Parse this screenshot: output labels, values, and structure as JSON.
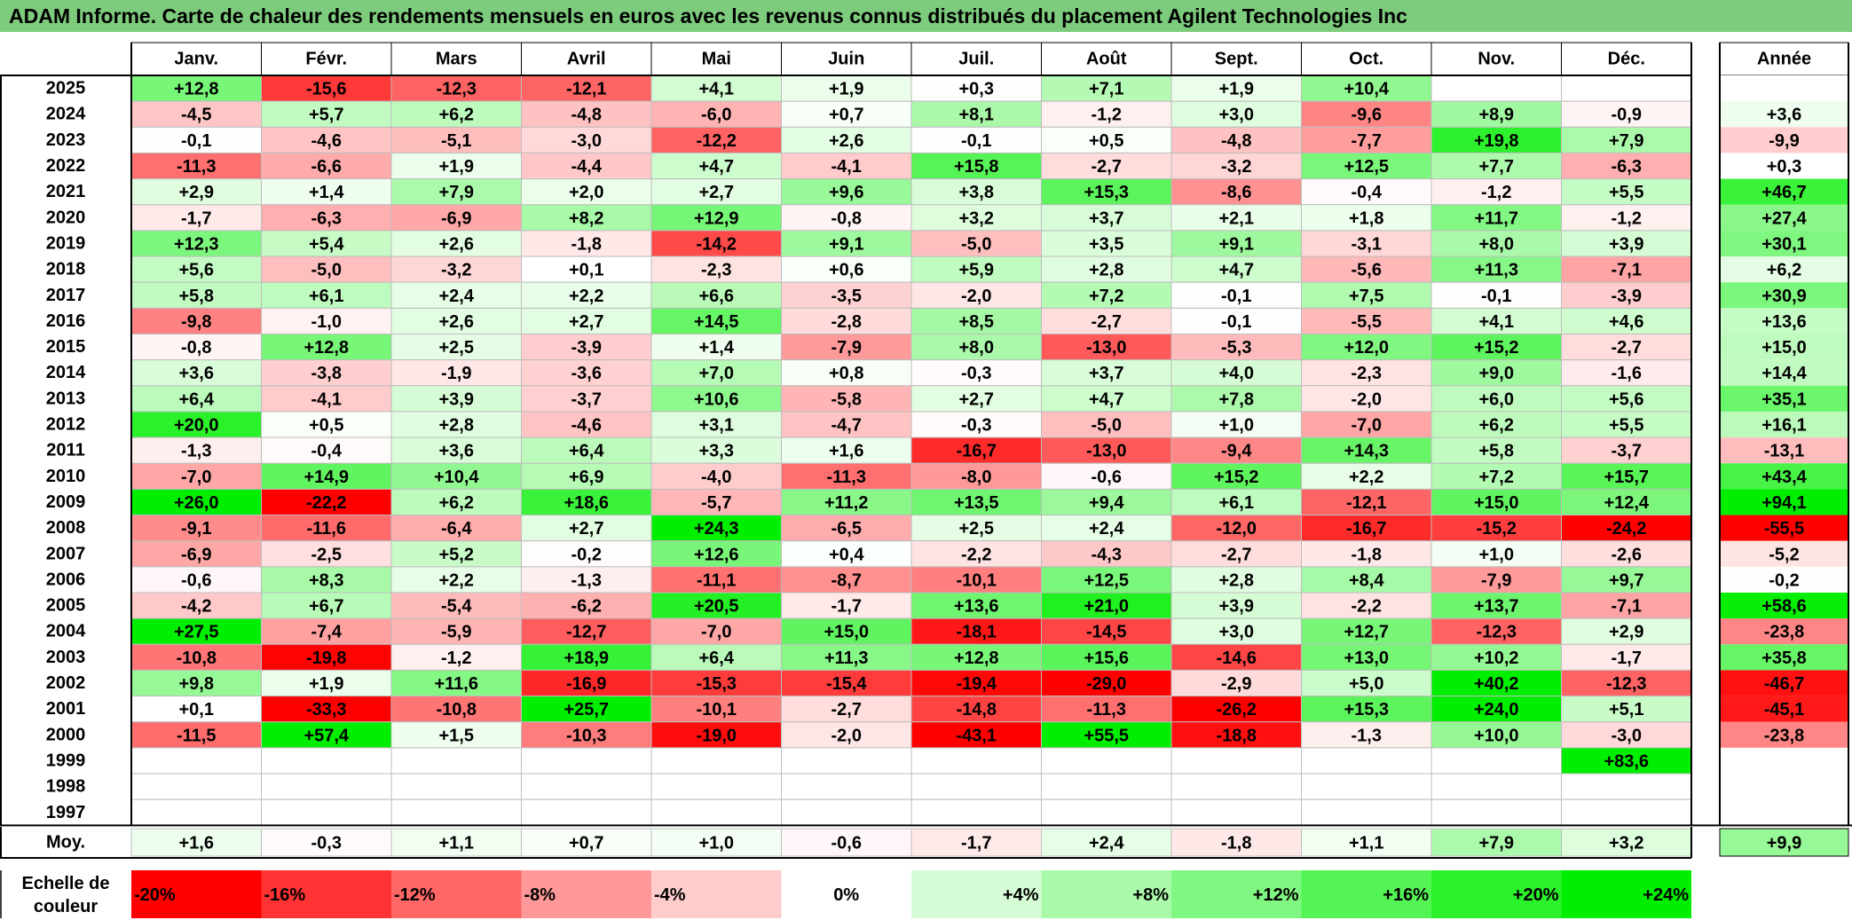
{
  "title": "ADAM Informe. Carte de chaleur des rendements mensuels en euros avec les revenus connus distribués du placement Agilent Technologies Inc",
  "chart_data": {
    "type": "heatmap",
    "title": "ADAM Informe. Carte de chaleur des rendements mensuels en euros avec les revenus connus distribués du placement Agilent Technologies Inc",
    "columns": [
      "Janv.",
      "Févr.",
      "Mars",
      "Avril",
      "Mai",
      "Juin",
      "Juil.",
      "Août",
      "Sept.",
      "Oct.",
      "Nov.",
      "Déc."
    ],
    "year_column_label": "Année",
    "rows": [
      {
        "year": "2025",
        "values": [
          "+12,8",
          "-15,6",
          "-12,3",
          "-12,1",
          "+4,1",
          "+1,9",
          "+0,3",
          "+7,1",
          "+1,9",
          "+10,4",
          "",
          ""
        ],
        "annual": ""
      },
      {
        "year": "2024",
        "values": [
          "-4,5",
          "+5,7",
          "+6,2",
          "-4,8",
          "-6,0",
          "+0,7",
          "+8,1",
          "-1,2",
          "+3,0",
          "-9,6",
          "+8,9",
          "-0,9"
        ],
        "annual": "+3,6"
      },
      {
        "year": "2023",
        "values": [
          "-0,1",
          "-4,6",
          "-5,1",
          "-3,0",
          "-12,2",
          "+2,6",
          "-0,1",
          "+0,5",
          "-4,8",
          "-7,7",
          "+19,8",
          "+7,9"
        ],
        "annual": "-9,9"
      },
      {
        "year": "2022",
        "values": [
          "-11,3",
          "-6,6",
          "+1,9",
          "-4,4",
          "+4,7",
          "-4,1",
          "+15,8",
          "-2,7",
          "-3,2",
          "+12,5",
          "+7,7",
          "-6,3"
        ],
        "annual": "+0,3"
      },
      {
        "year": "2021",
        "values": [
          "+2,9",
          "+1,4",
          "+7,9",
          "+2,0",
          "+2,7",
          "+9,6",
          "+3,8",
          "+15,3",
          "-8,6",
          "-0,4",
          "-1,2",
          "+5,5"
        ],
        "annual": "+46,7"
      },
      {
        "year": "2020",
        "values": [
          "-1,7",
          "-6,3",
          "-6,9",
          "+8,2",
          "+12,9",
          "-0,8",
          "+3,2",
          "+3,7",
          "+2,1",
          "+1,8",
          "+11,7",
          "-1,2"
        ],
        "annual": "+27,4"
      },
      {
        "year": "2019",
        "values": [
          "+12,3",
          "+5,4",
          "+2,6",
          "-1,8",
          "-14,2",
          "+9,1",
          "-5,0",
          "+3,5",
          "+9,1",
          "-3,1",
          "+8,0",
          "+3,9"
        ],
        "annual": "+30,1"
      },
      {
        "year": "2018",
        "values": [
          "+5,6",
          "-5,0",
          "-3,2",
          "+0,1",
          "-2,3",
          "+0,6",
          "+5,9",
          "+2,8",
          "+4,7",
          "-5,6",
          "+11,3",
          "-7,1"
        ],
        "annual": "+6,2"
      },
      {
        "year": "2017",
        "values": [
          "+5,8",
          "+6,1",
          "+2,4",
          "+2,2",
          "+6,6",
          "-3,5",
          "-2,0",
          "+7,2",
          "-0,1",
          "+7,5",
          "-0,1",
          "-3,9"
        ],
        "annual": "+30,9"
      },
      {
        "year": "2016",
        "values": [
          "-9,8",
          "-1,0",
          "+2,6",
          "+2,7",
          "+14,5",
          "-2,8",
          "+8,5",
          "-2,7",
          "-0,1",
          "-5,5",
          "+4,1",
          "+4,6"
        ],
        "annual": "+13,6"
      },
      {
        "year": "2015",
        "values": [
          "-0,8",
          "+12,8",
          "+2,5",
          "-3,9",
          "+1,4",
          "-7,9",
          "+8,0",
          "-13,0",
          "-5,3",
          "+12,0",
          "+15,2",
          "-2,7"
        ],
        "annual": "+15,0"
      },
      {
        "year": "2014",
        "values": [
          "+3,6",
          "-3,8",
          "-1,9",
          "-3,6",
          "+7,0",
          "+0,8",
          "-0,3",
          "+3,7",
          "+4,0",
          "-2,3",
          "+9,0",
          "-1,6"
        ],
        "annual": "+14,4"
      },
      {
        "year": "2013",
        "values": [
          "+6,4",
          "-4,1",
          "+3,9",
          "-3,7",
          "+10,6",
          "-5,8",
          "+2,7",
          "+4,7",
          "+7,8",
          "-2,0",
          "+6,0",
          "+5,6"
        ],
        "annual": "+35,1"
      },
      {
        "year": "2012",
        "values": [
          "+20,0",
          "+0,5",
          "+2,8",
          "-4,6",
          "+3,1",
          "-4,7",
          "-0,3",
          "-5,0",
          "+1,0",
          "-7,0",
          "+6,2",
          "+5,5"
        ],
        "annual": "+16,1"
      },
      {
        "year": "2011",
        "values": [
          "-1,3",
          "-0,4",
          "+3,6",
          "+6,4",
          "+3,3",
          "+1,6",
          "-16,7",
          "-13,0",
          "-9,4",
          "+14,3",
          "+5,8",
          "-3,7"
        ],
        "annual": "-13,1"
      },
      {
        "year": "2010",
        "values": [
          "-7,0",
          "+14,9",
          "+10,4",
          "+6,9",
          "-4,0",
          "-11,3",
          "-8,0",
          "-0,6",
          "+15,2",
          "+2,2",
          "+7,2",
          "+15,7"
        ],
        "annual": "+43,4"
      },
      {
        "year": "2009",
        "values": [
          "+26,0",
          "-22,2",
          "+6,2",
          "+18,6",
          "-5,7",
          "+11,2",
          "+13,5",
          "+9,4",
          "+6,1",
          "-12,1",
          "+15,0",
          "+12,4"
        ],
        "annual": "+94,1"
      },
      {
        "year": "2008",
        "values": [
          "-9,1",
          "-11,6",
          "-6,4",
          "+2,7",
          "+24,3",
          "-6,5",
          "+2,5",
          "+2,4",
          "-12,0",
          "-16,7",
          "-15,2",
          "-24,2"
        ],
        "annual": "-55,5"
      },
      {
        "year": "2007",
        "values": [
          "-6,9",
          "-2,5",
          "+5,2",
          "-0,2",
          "+12,6",
          "+0,4",
          "-2,2",
          "-4,3",
          "-2,7",
          "-1,8",
          "+1,0",
          "-2,6"
        ],
        "annual": "-5,2"
      },
      {
        "year": "2006",
        "values": [
          "-0,6",
          "+8,3",
          "+2,2",
          "-1,3",
          "-11,1",
          "-8,7",
          "-10,1",
          "+12,5",
          "+2,8",
          "+8,4",
          "-7,9",
          "+9,7"
        ],
        "annual": "-0,2"
      },
      {
        "year": "2005",
        "values": [
          "-4,2",
          "+6,7",
          "-5,4",
          "-6,2",
          "+20,5",
          "-1,7",
          "+13,6",
          "+21,0",
          "+3,9",
          "-2,2",
          "+13,7",
          "-7,1"
        ],
        "annual": "+58,6"
      },
      {
        "year": "2004",
        "values": [
          "+27,5",
          "-7,4",
          "-5,9",
          "-12,7",
          "-7,0",
          "+15,0",
          "-18,1",
          "-14,5",
          "+3,0",
          "+12,7",
          "-12,3",
          "+2,9"
        ],
        "annual": "-23,8"
      },
      {
        "year": "2003",
        "values": [
          "-10,8",
          "-19,8",
          "-1,2",
          "+18,9",
          "+6,4",
          "+11,3",
          "+12,8",
          "+15,6",
          "-14,6",
          "+13,0",
          "+10,2",
          "-1,7"
        ],
        "annual": "+35,8"
      },
      {
        "year": "2002",
        "values": [
          "+9,8",
          "+1,9",
          "+11,6",
          "-16,9",
          "-15,3",
          "-15,4",
          "-19,4",
          "-29,0",
          "-2,9",
          "+5,0",
          "+40,2",
          "-12,3"
        ],
        "annual": "-46,7"
      },
      {
        "year": "2001",
        "values": [
          "+0,1",
          "-33,3",
          "-10,8",
          "+25,7",
          "-10,1",
          "-2,7",
          "-14,8",
          "-11,3",
          "-26,2",
          "+15,3",
          "+24,0",
          "+5,1"
        ],
        "annual": "-45,1"
      },
      {
        "year": "2000",
        "values": [
          "-11,5",
          "+57,4",
          "+1,5",
          "-10,3",
          "-19,0",
          "-2,0",
          "-43,1",
          "+55,5",
          "-18,8",
          "-1,3",
          "+10,0",
          "-3,0"
        ],
        "annual": "-23,8"
      },
      {
        "year": "1999",
        "values": [
          "",
          "",
          "",
          "",
          "",
          "",
          "",
          "",
          "",
          "",
          "",
          "+83,6"
        ],
        "annual": ""
      },
      {
        "year": "1998",
        "values": [
          "",
          "",
          "",
          "",
          "",
          "",
          "",
          "",
          "",
          "",
          "",
          ""
        ],
        "annual": ""
      },
      {
        "year": "1997",
        "values": [
          "",
          "",
          "",
          "",
          "",
          "",
          "",
          "",
          "",
          "",
          "",
          ""
        ],
        "annual": ""
      }
    ],
    "average": {
      "label": "Moy.",
      "values": [
        "+1,6",
        "-0,3",
        "+1,1",
        "+0,7",
        "+1,0",
        "-0,6",
        "-1,7",
        "+2,4",
        "-1,8",
        "+1,1",
        "+7,9",
        "+3,2"
      ],
      "annual": "+9,9"
    },
    "scale": {
      "label_line1": "Echelle de",
      "label_line2": "couleur",
      "steps": [
        {
          "label": "-20%",
          "value": -20
        },
        {
          "label": "-16%",
          "value": -16
        },
        {
          "label": "-12%",
          "value": -12
        },
        {
          "label": "-8%",
          "value": -8
        },
        {
          "label": "-4%",
          "value": -4
        },
        {
          "label": "0%",
          "value": 0
        },
        {
          "label": "+4%",
          "value": 4
        },
        {
          "label": "+8%",
          "value": 8
        },
        {
          "label": "+12%",
          "value": 12
        },
        {
          "label": "+16%",
          "value": 16
        },
        {
          "label": "+20%",
          "value": 20
        },
        {
          "label": "+24%",
          "value": 24
        }
      ]
    },
    "colors": {
      "negative_max": "#ff0000",
      "positive_max": "#00ee00",
      "neutral": "#ffffff",
      "title_bar": "#7dcb7d"
    }
  }
}
